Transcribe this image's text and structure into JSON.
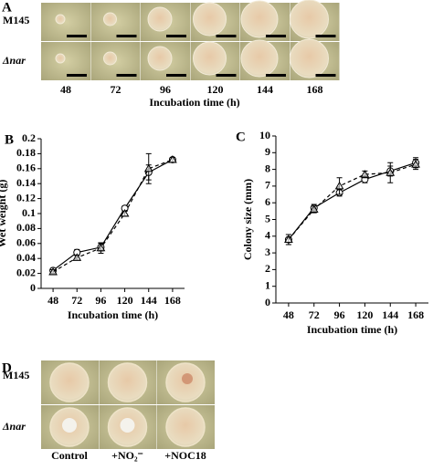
{
  "panel_a": {
    "label": "A",
    "rows": [
      "M145",
      "Δnar"
    ],
    "columns": [
      48,
      72,
      96,
      120,
      144,
      168
    ],
    "xlabel": "Incubation time (h)"
  },
  "chart_data": [
    {
      "type": "line",
      "label": "B",
      "xlabel": "Incubation time (h)",
      "ylabel": "Wet weight (g)",
      "x": [
        48,
        72,
        96,
        120,
        144,
        168
      ],
      "xlim": [
        36,
        180
      ],
      "xticks": [
        48,
        72,
        96,
        120,
        144,
        168
      ],
      "ylim": [
        0,
        0.2
      ],
      "yticks": [
        0,
        0.02,
        0.04,
        0.06,
        0.08,
        0.1,
        0.12,
        0.14,
        0.16,
        0.18,
        0.2
      ],
      "series": [
        {
          "color": "#000000",
          "marker": "circle",
          "dashed": false,
          "values": [
            0.024,
            0.048,
            0.055,
            0.107,
            0.155,
            0.172
          ],
          "errors": [
            0.003,
            0.004,
            0.005,
            0.003,
            0.01,
            0.003
          ]
        },
        {
          "color": "#000000",
          "marker": "triangle",
          "dashed": true,
          "values": [
            0.022,
            0.041,
            0.054,
            0.1,
            0.16,
            0.172
          ],
          "errors": [
            0.003,
            0.003,
            0.007,
            0.003,
            0.02,
            0.003
          ]
        }
      ]
    },
    {
      "type": "line",
      "label": "C",
      "xlabel": "Incubation time (h)",
      "ylabel": "Colony size (mm)",
      "x": [
        48,
        72,
        96,
        120,
        144,
        168
      ],
      "xlim": [
        36,
        180
      ],
      "xticks": [
        48,
        72,
        96,
        120,
        144,
        168
      ],
      "ylim": [
        0,
        10
      ],
      "yticks": [
        0,
        1,
        2,
        3,
        4,
        5,
        6,
        7,
        8,
        9,
        10
      ],
      "series": [
        {
          "color": "#000000",
          "marker": "circle",
          "dashed": false,
          "values": [
            3.8,
            5.7,
            6.6,
            7.4,
            7.9,
            8.4
          ],
          "errors": [
            0.3,
            0.2,
            0.2,
            0.2,
            0.3,
            0.3
          ]
        },
        {
          "color": "#000000",
          "marker": "triangle",
          "dashed": true,
          "values": [
            3.8,
            5.6,
            7.0,
            7.7,
            7.8,
            8.3
          ],
          "errors": [
            0.3,
            0.2,
            0.5,
            0.2,
            0.6,
            0.3
          ]
        }
      ]
    }
  ],
  "panel_d": {
    "label": "D",
    "rows": [
      "M145",
      "Δnar"
    ],
    "columns": [
      "Control",
      "+NO₂⁻",
      "+NOC18"
    ]
  }
}
